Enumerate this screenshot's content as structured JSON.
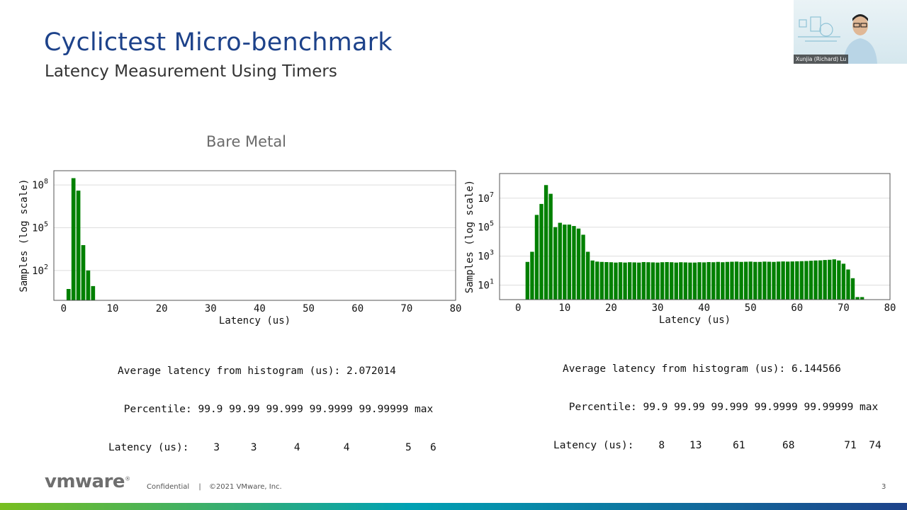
{
  "slide": {
    "title": "Cyclictest Micro-benchmark",
    "subtitle": "Latency Measurement Using Timers",
    "page_number": "3"
  },
  "left_panel": {
    "label": "Bare Metal",
    "stats": {
      "avg_line": "Average latency from histogram (us): 2.072014",
      "percentile_line": " Percentile: 99.9 99.99 99.999 99.9999 99.99999 max",
      "latency_line": "Latency (us):    3     3      4       4         5   6"
    }
  },
  "right_panel": {
    "stats": {
      "avg_line": "Average latency from histogram (us): 6.144566",
      "percentile_line": " Percentile: 99.9 99.99 99.999 99.9999 99.99999 max",
      "latency_line": "Latency (us):    8    13     61      68        71  74"
    }
  },
  "chart_data": [
    {
      "type": "bar",
      "title": "",
      "xlabel": "Latency (us)",
      "ylabel": "Samples (log scale)",
      "y_scale": "log",
      "xlim": [
        -2,
        80
      ],
      "ylim": [
        0.8,
        1000000000
      ],
      "xticks": [
        "0",
        "10",
        "20",
        "30",
        "40",
        "50",
        "60",
        "70",
        "80"
      ],
      "yticks": [
        "10^2",
        "10^5",
        "10^8"
      ],
      "grid": "horizontal",
      "bar_color": "#008000",
      "x": [
        1,
        2,
        3,
        4,
        5,
        6
      ],
      "values": [
        5,
        300000000,
        40000000,
        6000,
        100,
        8
      ]
    },
    {
      "type": "bar",
      "title": "",
      "xlabel": "Latency (us)",
      "ylabel": "Samples (log scale)",
      "y_scale": "log",
      "xlim": [
        -4,
        80
      ],
      "ylim": [
        1,
        500000000
      ],
      "xticks": [
        "0",
        "10",
        "20",
        "30",
        "40",
        "50",
        "60",
        "70",
        "80"
      ],
      "yticks": [
        "10^1",
        "10^3",
        "10^5",
        "10^7"
      ],
      "grid": "horizontal",
      "bar_color": "#008000",
      "x": [
        2,
        3,
        4,
        5,
        6,
        7,
        8,
        9,
        10,
        11,
        12,
        13,
        14,
        15,
        16,
        17,
        18,
        19,
        20,
        21,
        22,
        23,
        24,
        25,
        26,
        27,
        28,
        29,
        30,
        31,
        32,
        33,
        34,
        35,
        36,
        37,
        38,
        39,
        40,
        41,
        42,
        43,
        44,
        45,
        46,
        47,
        48,
        49,
        50,
        51,
        52,
        53,
        54,
        55,
        56,
        57,
        58,
        59,
        60,
        61,
        62,
        63,
        64,
        65,
        66,
        67,
        68,
        69,
        70,
        71,
        72,
        73,
        74
      ],
      "values": [
        400,
        2000,
        700000,
        4000000,
        80000000,
        20000000,
        100000,
        200000,
        150000,
        150000,
        120000,
        80000,
        30000,
        2000,
        500,
        420,
        400,
        390,
        380,
        360,
        380,
        360,
        380,
        370,
        360,
        390,
        380,
        370,
        360,
        380,
        390,
        380,
        360,
        380,
        370,
        360,
        360,
        380,
        370,
        390,
        380,
        400,
        380,
        400,
        410,
        420,
        400,
        410,
        420,
        400,
        400,
        420,
        410,
        400,
        420,
        430,
        420,
        430,
        440,
        450,
        460,
        480,
        500,
        510,
        540,
        560,
        600,
        500,
        300,
        120,
        30,
        1.5,
        1.5
      ]
    }
  ]
}
